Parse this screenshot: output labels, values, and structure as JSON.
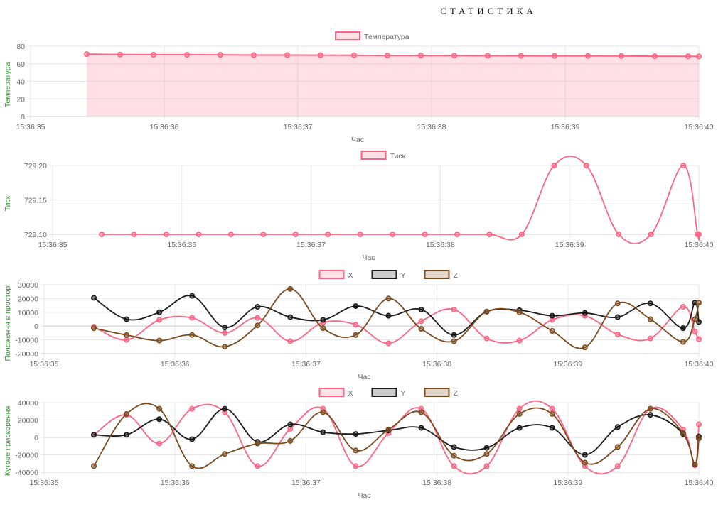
{
  "page": {
    "title": "СТАТИСТИКА"
  },
  "chart_data": [
    {
      "type": "area",
      "id": "temperature",
      "ylabel": "Температура",
      "xlabel": "Час",
      "x_ticks": [
        "15:36:35",
        "15:36:36",
        "15:36:37",
        "15:36:38",
        "15:36:39",
        "15:36:40"
      ],
      "y_ticks": [
        "0",
        "20",
        "40",
        "60",
        "80"
      ],
      "ylim": [
        0,
        80
      ],
      "xlim": [
        35.0,
        40.0
      ],
      "grid": true,
      "legend": "top-center",
      "series": [
        {
          "name": "Температура",
          "color": "#ff6384",
          "fill": "rgba(255,99,132,0.2)",
          "x": [
            35.42,
            35.67,
            35.92,
            36.17,
            36.42,
            36.67,
            36.92,
            37.17,
            37.42,
            37.67,
            37.92,
            38.17,
            38.42,
            38.67,
            38.92,
            39.17,
            39.42,
            39.67,
            39.92,
            40.0
          ],
          "y": [
            71.0,
            70.5,
            70.3,
            70.3,
            70.2,
            69.9,
            69.9,
            69.8,
            69.7,
            69.4,
            69.4,
            69.3,
            69.2,
            69.1,
            69.0,
            69.0,
            68.9,
            68.6,
            68.5,
            68.4
          ]
        }
      ]
    },
    {
      "type": "line",
      "id": "pressure",
      "ylabel": "Тиск",
      "xlabel": "Час",
      "x_ticks": [
        "15:36:35",
        "15:36:36",
        "15:36:37",
        "15:36:38",
        "15:36:39",
        "15:36:40"
      ],
      "y_ticks": [
        "729.10",
        "729.15",
        "729.20"
      ],
      "ylim": [
        729.1,
        729.2
      ],
      "xlim": [
        35.0,
        40.0
      ],
      "grid": true,
      "legend": "top-center",
      "series": [
        {
          "name": "Тиск",
          "color": "#ff6384",
          "fill": "rgba(255,99,132,0.2)",
          "x": [
            35.38,
            35.63,
            35.88,
            36.13,
            36.38,
            36.63,
            36.88,
            37.13,
            37.38,
            37.63,
            37.88,
            38.13,
            38.38,
            38.63,
            38.88,
            39.13,
            39.38,
            39.63,
            39.88,
            39.99,
            40.0
          ],
          "y": [
            729.1,
            729.1,
            729.1,
            729.1,
            729.1,
            729.1,
            729.1,
            729.1,
            729.1,
            729.1,
            729.1,
            729.1,
            729.1,
            729.1,
            729.2,
            729.2,
            729.1,
            729.1,
            729.2,
            729.1,
            729.1
          ]
        }
      ]
    },
    {
      "type": "line",
      "id": "position",
      "ylabel": "Положення в просторі",
      "xlabel": "Час",
      "x_ticks": [
        "15:36:35",
        "15:36:36",
        "15:36:37",
        "15:36:38",
        "15:36:39",
        "15:36:40"
      ],
      "y_ticks": [
        "-20000",
        "-10000",
        "0",
        "10000",
        "20000",
        "30000"
      ],
      "ylim": [
        -20000,
        30000
      ],
      "xlim": [
        35.0,
        40.0
      ],
      "grid": true,
      "legend": "top-center",
      "series": [
        {
          "name": "X",
          "color": "#ff6384",
          "fill": "rgba(255,99,132,0.2)",
          "x": [
            35.38,
            35.63,
            35.88,
            36.13,
            36.38,
            36.63,
            36.88,
            37.13,
            37.38,
            37.63,
            37.88,
            38.13,
            38.38,
            38.63,
            38.88,
            39.13,
            39.38,
            39.63,
            39.88,
            39.97,
            40.0
          ],
          "y": [
            -500,
            -10000,
            4500,
            6000,
            -5000,
            6000,
            -11000,
            2500,
            1000,
            -12500,
            3500,
            12000,
            -9000,
            -10500,
            4500,
            7500,
            -6000,
            -9000,
            14000,
            -4000,
            -9500
          ]
        },
        {
          "name": "Y",
          "color": "#1a1a1a",
          "fill": "rgba(0,0,0,0.2)",
          "x": [
            35.38,
            35.63,
            35.88,
            36.13,
            36.38,
            36.63,
            36.88,
            37.13,
            37.38,
            37.63,
            37.88,
            38.13,
            38.38,
            38.63,
            38.88,
            39.13,
            39.38,
            39.63,
            39.88,
            39.97,
            40.0
          ],
          "y": [
            20500,
            5000,
            10000,
            22000,
            -1000,
            14000,
            6500,
            4500,
            14500,
            7500,
            12000,
            -6500,
            10500,
            11500,
            7500,
            9500,
            6500,
            16500,
            -1500,
            17000,
            3000
          ]
        },
        {
          "name": "Z",
          "color": "#7a4a1c",
          "fill": "rgba(139,90,43,0.25)",
          "x": [
            35.38,
            35.63,
            35.88,
            36.13,
            36.38,
            36.63,
            36.88,
            37.13,
            37.38,
            37.63,
            37.88,
            38.13,
            38.38,
            38.63,
            38.88,
            39.13,
            39.38,
            39.63,
            39.88,
            39.97,
            40.0
          ],
          "y": [
            -1500,
            -6500,
            -10500,
            -6500,
            -15000,
            500,
            27000,
            -1500,
            -6500,
            20000,
            -2000,
            -11000,
            10500,
            10000,
            -3500,
            -15500,
            16500,
            5000,
            -11500,
            5000,
            17000
          ]
        }
      ]
    },
    {
      "type": "line",
      "id": "angular_acceleration",
      "ylabel": "Кутове прискорення",
      "xlabel": "Час",
      "x_ticks": [
        "15:36:35",
        "15:36:36",
        "15:36:37",
        "15:36:38",
        "15:36:39",
        "15:36:40"
      ],
      "y_ticks": [
        "-40000",
        "-20000",
        "0",
        "20000",
        "40000"
      ],
      "ylim": [
        -40000,
        40000
      ],
      "xlim": [
        35.0,
        40.0
      ],
      "grid": true,
      "legend": "top-center",
      "series": [
        {
          "name": "X",
          "color": "#ff6384",
          "fill": "rgba(255,99,132,0.2)",
          "x": [
            35.38,
            35.63,
            35.88,
            36.13,
            36.38,
            36.63,
            36.88,
            37.13,
            37.38,
            37.63,
            37.88,
            38.13,
            38.38,
            38.63,
            38.88,
            39.13,
            39.38,
            39.63,
            39.88,
            39.97,
            40.0
          ],
          "y": [
            3000,
            26000,
            -7000,
            33000,
            29000,
            -33000,
            10000,
            33000,
            -33000,
            5000,
            33000,
            -33000,
            -33000,
            33000,
            33000,
            -33000,
            -33000,
            33000,
            9000,
            -32000,
            15000
          ]
        },
        {
          "name": "Y",
          "color": "#1a1a1a",
          "fill": "rgba(0,0,0,0.2)",
          "x": [
            35.38,
            35.63,
            35.88,
            36.13,
            36.38,
            36.63,
            36.88,
            37.13,
            37.38,
            37.63,
            37.88,
            38.13,
            38.38,
            38.63,
            38.88,
            39.13,
            39.38,
            39.63,
            39.88,
            39.97,
            40.0
          ],
          "y": [
            3000,
            3000,
            21000,
            -2000,
            33000,
            -5000,
            15000,
            6000,
            4000,
            8000,
            11000,
            -11000,
            -12000,
            11000,
            11000,
            -20000,
            12000,
            26000,
            4000,
            -31000,
            1000
          ]
        },
        {
          "name": "Z",
          "color": "#7a4a1c",
          "fill": "rgba(139,90,43,0.25)",
          "x": [
            35.38,
            35.63,
            35.88,
            36.13,
            36.38,
            36.63,
            36.88,
            37.13,
            37.38,
            37.63,
            37.88,
            38.13,
            38.38,
            38.63,
            38.88,
            39.13,
            39.38,
            39.63,
            39.88,
            39.97,
            40.0
          ],
          "y": [
            -33000,
            27000,
            33000,
            -33000,
            -19000,
            -7000,
            -4000,
            29000,
            -15000,
            9000,
            29000,
            -21000,
            -19000,
            27000,
            27000,
            -29000,
            -11000,
            33000,
            5000,
            -31000,
            -1000
          ]
        }
      ]
    }
  ]
}
